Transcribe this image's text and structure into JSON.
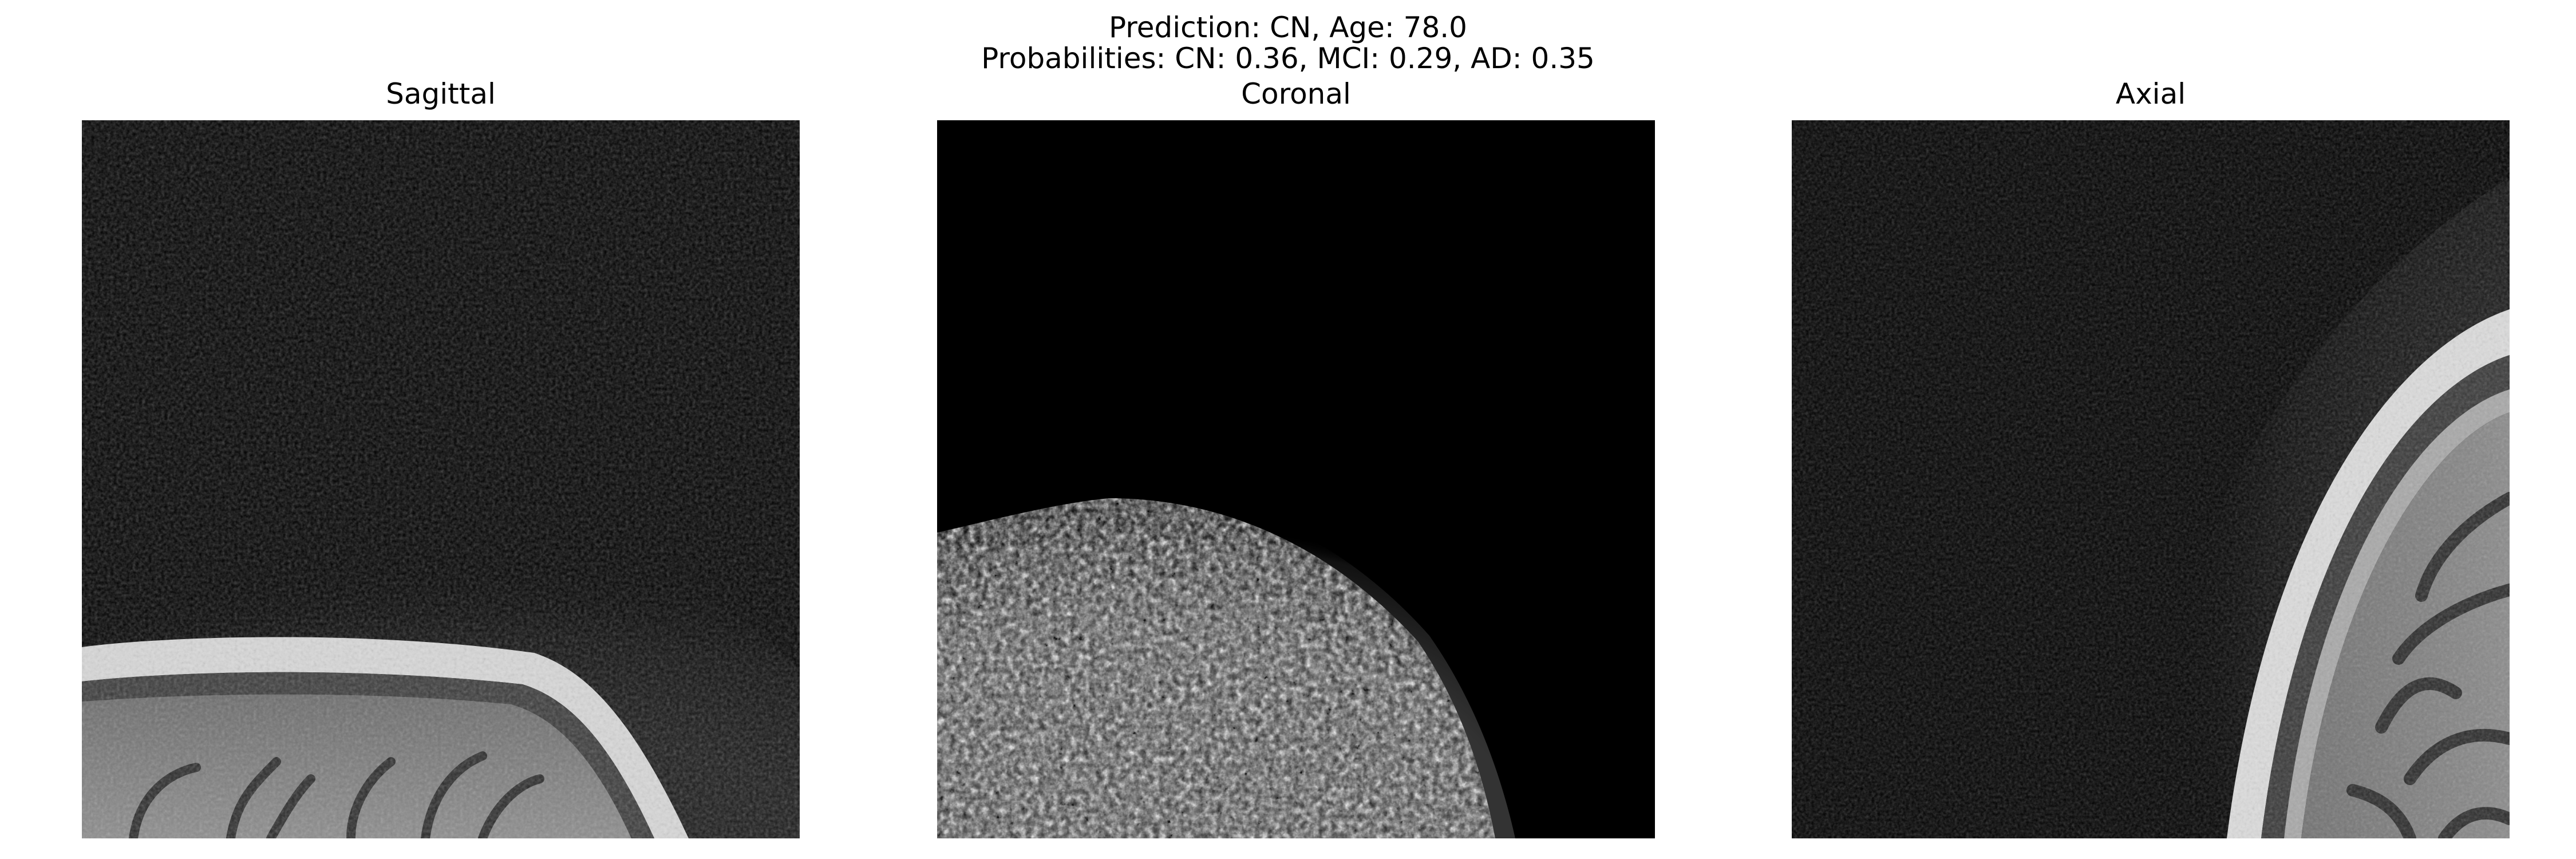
{
  "figure": {
    "title_line1": "Prediction: CN, Age: 78.0",
    "title_line2": "Probabilities: CN: 0.36, MCI: 0.29, AD: 0.35"
  },
  "prediction": {
    "label": "CN",
    "age": 78.0,
    "probabilities": {
      "CN": 0.36,
      "MCI": 0.29,
      "AD": 0.35
    }
  },
  "panels": [
    {
      "title": "Sagittal",
      "colormap": "gray"
    },
    {
      "title": "Coronal",
      "colormap": "gray"
    },
    {
      "title": "Axial",
      "colormap": "gray"
    }
  ]
}
